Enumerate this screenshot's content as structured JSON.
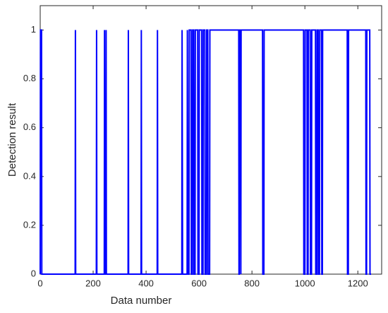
{
  "chart_data": {
    "type": "line",
    "xlabel": "Data number",
    "ylabel": "Detection result",
    "xlim": [
      0,
      1290
    ],
    "xticks": [
      0,
      200,
      400,
      600,
      800,
      1000,
      1200
    ],
    "ylim": [
      0,
      1.1
    ],
    "yticks": [
      0,
      0.2,
      0.4,
      0.6,
      0.8,
      1
    ],
    "series": [
      {
        "color": "#0000ff",
        "x": [
          0,
          1,
          5,
          6,
          132,
          133,
          134,
          212,
          213,
          214,
          242,
          243,
          244,
          248,
          249,
          250,
          332,
          333,
          334,
          381,
          382,
          383,
          442,
          443,
          444,
          535,
          536,
          538,
          555,
          556,
          558,
          562,
          563,
          570,
          571,
          575,
          576,
          580,
          581,
          585,
          586,
          595,
          596,
          600,
          601,
          610,
          611,
          615,
          616,
          622,
          623,
          628,
          629,
          633,
          634,
          640,
          641,
          750,
          751,
          752,
          753,
          757,
          758,
          759,
          840,
          841,
          845,
          846,
          995,
          996,
          1000,
          1001,
          1008,
          1009,
          1012,
          1013,
          1020,
          1021,
          1025,
          1026,
          1040,
          1041,
          1045,
          1046,
          1050,
          1051,
          1055,
          1056,
          1063,
          1064,
          1066,
          1067,
          1160,
          1161,
          1164,
          1165,
          1230,
          1231,
          1233,
          1234,
          1245,
          1246,
          1250
        ],
        "values": [
          0,
          1,
          1,
          0,
          0,
          1,
          0,
          0,
          1,
          0,
          0,
          1,
          0,
          0,
          1,
          0,
          0,
          1,
          0,
          0,
          1,
          0,
          0,
          1,
          0,
          0,
          1,
          0,
          0,
          1,
          0,
          0,
          1,
          1,
          0,
          0,
          1,
          1,
          0,
          0,
          1,
          1,
          0,
          0,
          1,
          1,
          0,
          0,
          1,
          1,
          0,
          0,
          1,
          1,
          0,
          0,
          1,
          1,
          0,
          0,
          1,
          1,
          0,
          1,
          1,
          0,
          0,
          1,
          1,
          0,
          0,
          1,
          1,
          0,
          0,
          1,
          1,
          0,
          0,
          1,
          1,
          0,
          0,
          1,
          1,
          0,
          0,
          1,
          1,
          0,
          0,
          1,
          1,
          0,
          0,
          1,
          1,
          0,
          0,
          1,
          1,
          0,
          0
        ]
      }
    ]
  }
}
